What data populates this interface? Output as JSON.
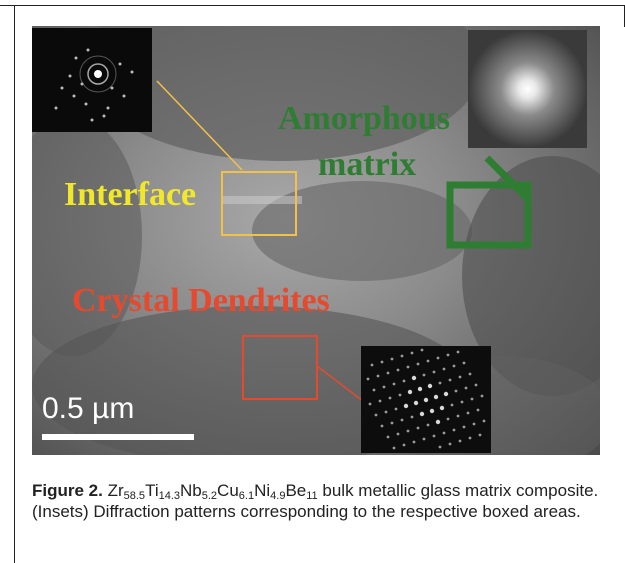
{
  "figure": {
    "labels": {
      "interface": "Interface",
      "amorphous": "Amorphous",
      "matrix": "matrix",
      "dendrites": "Crystal Dendrites"
    },
    "scale_bar": "0.5 µm",
    "colors": {
      "interface": "#f2e82a",
      "amorphous": "#2e7d32",
      "dendrites": "#e64a2e"
    }
  },
  "caption": {
    "figure_label": "Figure 2.",
    "formula": [
      {
        "el": "Zr",
        "sub": "58.5"
      },
      {
        "el": "Ti",
        "sub": "14.3"
      },
      {
        "el": "Nb",
        "sub": "5.2"
      },
      {
        "el": "Cu",
        "sub": "6.1"
      },
      {
        "el": "Ni",
        "sub": "4.9"
      },
      {
        "el": "Be",
        "sub": "11"
      }
    ],
    "text": " bulk metallic glass matrix composite. (Insets) Diffraction patterns corresponding to the respective boxed areas."
  }
}
